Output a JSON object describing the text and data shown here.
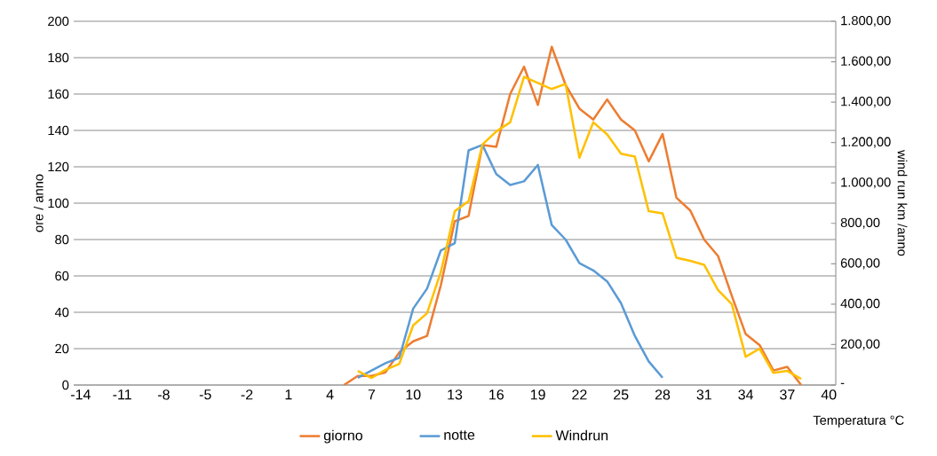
{
  "chart_data": {
    "type": "line",
    "xlabel": "Temperatura °C",
    "ylabel": "ore / anno",
    "y2label": "wind run km /anno",
    "xlim": [
      -14.5,
      40.5
    ],
    "xticks": [
      -14,
      -11,
      -8,
      -5,
      -2,
      1,
      4,
      7,
      10,
      13,
      16,
      19,
      22,
      25,
      28,
      31,
      34,
      37,
      40
    ],
    "ylim": [
      0,
      200
    ],
    "yticks": [
      0,
      20,
      40,
      60,
      80,
      100,
      120,
      140,
      160,
      180,
      200
    ],
    "y2lim": [
      0,
      1800
    ],
    "y2ticks": [
      {
        "value": 0,
        "label": "-"
      },
      {
        "value": 200,
        "label": "200,00"
      },
      {
        "value": 400,
        "label": "400,00"
      },
      {
        "value": 600,
        "label": "600,00"
      },
      {
        "value": 800,
        "label": "800,00"
      },
      {
        "value": 1000,
        "label": "1.000,00"
      },
      {
        "value": 1200,
        "label": "1.200,00"
      },
      {
        "value": 1400,
        "label": "1.400,00"
      },
      {
        "value": 1600,
        "label": "1.600,00"
      },
      {
        "value": 1800,
        "label": "1.800,00"
      }
    ],
    "grid": "y",
    "legend": "bottom",
    "series": [
      {
        "name": "giorno",
        "color": "#ed7d31",
        "x": [
          5,
          6,
          7,
          8,
          9,
          10,
          11,
          12,
          13,
          14,
          15,
          16,
          17,
          18,
          19,
          20,
          21,
          22,
          23,
          24,
          25,
          26,
          27,
          28,
          29,
          30,
          31,
          32,
          33,
          34,
          35,
          36,
          37,
          38
        ],
        "values": [
          0,
          5,
          5,
          7,
          18,
          24,
          27,
          55,
          90,
          93,
          132,
          131,
          160,
          175,
          154,
          186,
          165,
          152,
          146,
          157,
          146,
          140,
          123,
          138,
          103,
          96,
          80,
          71,
          49,
          28,
          22,
          8,
          10,
          0
        ]
      },
      {
        "name": "notte",
        "color": "#5b9bd5",
        "x": [
          6,
          7,
          8,
          9,
          10,
          11,
          12,
          13,
          14,
          15,
          16,
          17,
          18,
          19,
          20,
          21,
          22,
          23,
          24,
          25,
          26,
          27,
          28
        ],
        "values": [
          4,
          8,
          12,
          15,
          42,
          53,
          74,
          78,
          129,
          132,
          116,
          110,
          112,
          121,
          88,
          80,
          67,
          63,
          57,
          45,
          27,
          13,
          4
        ]
      },
      {
        "name": "Windrun",
        "color": "#ffc000",
        "axis": "y2",
        "x": [
          6,
          7,
          8,
          9,
          10,
          11,
          12,
          13,
          14,
          15,
          16,
          17,
          18,
          19,
          20,
          21,
          22,
          23,
          24,
          25,
          26,
          27,
          28,
          29,
          30,
          31,
          32,
          33,
          34,
          35,
          36,
          37,
          38
        ],
        "values": [
          70,
          35,
          75,
          105,
          295,
          355,
          560,
          860,
          910,
          1190,
          1255,
          1300,
          1525,
          1495,
          1465,
          1490,
          1125,
          1300,
          1240,
          1145,
          1130,
          860,
          850,
          630,
          615,
          595,
          470,
          400,
          140,
          180,
          60,
          70,
          30
        ]
      }
    ]
  }
}
